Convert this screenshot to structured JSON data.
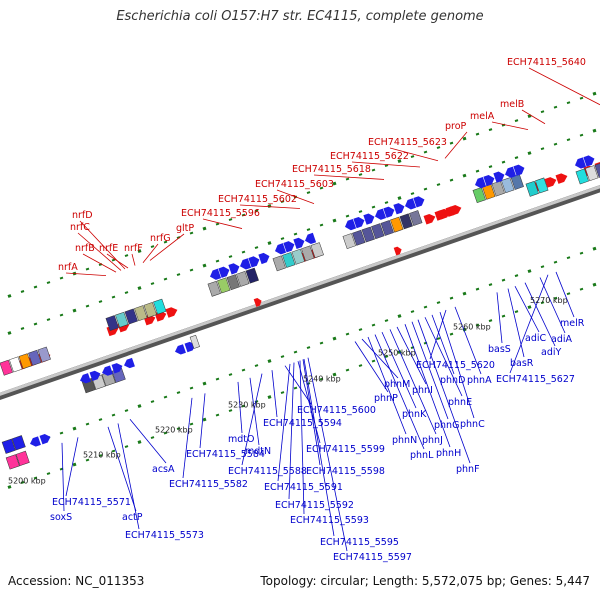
{
  "title": "Escherichia coli O157:H7 str. EC4115, complete genome",
  "footer": {
    "accession": "Accession: NC_011353",
    "summary": "Topology: circular; Length: 5,572,075 bp; Genes: 5,447"
  },
  "colors": {
    "top_label": "#cc0000",
    "bottom_label": "#0000cc",
    "backbone": "#777777",
    "tick": "#1a7a1a"
  },
  "ruler": [
    {
      "label": "5200 kbp",
      "kbp": 5200
    },
    {
      "label": "5210 kbp",
      "kbp": 5210
    },
    {
      "label": "5220 kbp",
      "kbp": 5220
    },
    {
      "label": "5230 kbp",
      "kbp": 5230
    },
    {
      "label": "5240 kbp",
      "kbp": 5240
    },
    {
      "label": "5250 kbp",
      "kbp": 5250
    },
    {
      "label": "5260 kbp",
      "kbp": 5260
    },
    {
      "label": "5270 kbp",
      "kbp": 5270
    }
  ],
  "top_labels": [
    "nrfA",
    "nrfB",
    "nrfC",
    "nrfD",
    "nrfE",
    "nrfF",
    "nrfG",
    "gltP",
    "ECH74115_5596",
    "ECH74115_5602",
    "ECH74115_5603",
    "ECH74115_5618",
    "ECH74115_5622",
    "ECH74115_5623",
    "proP",
    "melA",
    "melB",
    "ECH74115_5640"
  ],
  "bottom_labels": [
    "soxS",
    "ECH74115_5571",
    "actP",
    "ECH74115_5573",
    "acsA",
    "ECH74115_5582",
    "ECH74115_5584",
    "mdtO",
    "mdtN",
    "ECH74115_5588",
    "ECH74115_5594",
    "ECH74115_5600",
    "ECH74115_5599",
    "ECH74115_5598",
    "ECH74115_5591",
    "ECH74115_5592",
    "ECH74115_5593",
    "ECH74115_5595",
    "ECH74115_5597",
    "phnP",
    "phnM",
    "phnN",
    "phnL",
    "phnK",
    "phnJ",
    "phnI",
    "phnH",
    "phnG",
    "phnF",
    "phnE",
    "phnD",
    "phnC",
    "ECH74115_5620",
    "phnA",
    "basS",
    "basR",
    "adiC",
    "adiY",
    "adiA",
    "ECH74115_5627",
    "melR"
  ]
}
